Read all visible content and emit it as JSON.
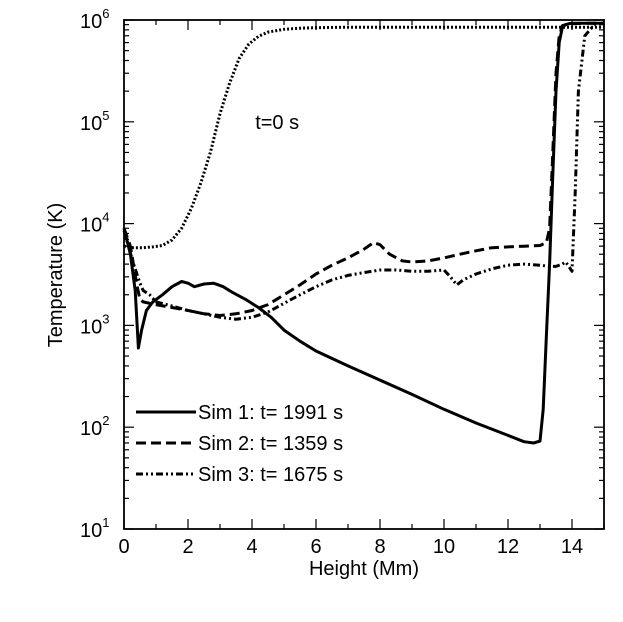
{
  "chart_data": {
    "type": "line",
    "title": "",
    "xlabel": "Height (Mm)",
    "ylabel": "Temperature (K)",
    "xlim": [
      0,
      15
    ],
    "ylim": [
      10,
      1000000
    ],
    "yscale": "log",
    "x_ticks": [
      0,
      2,
      4,
      6,
      8,
      10,
      12,
      14
    ],
    "x_tick_labels": [
      "0",
      "2",
      "4",
      "6",
      "8",
      "10",
      "12",
      "14"
    ],
    "y_ticks": [
      {
        "value": 10,
        "base": "10",
        "exp": "1"
      },
      {
        "value": 100,
        "base": "10",
        "exp": "2"
      },
      {
        "value": 1000,
        "base": "10",
        "exp": "3"
      },
      {
        "value": 10000,
        "base": "10",
        "exp": "4"
      },
      {
        "value": 100000,
        "base": "10",
        "exp": "5"
      },
      {
        "value": 1000000,
        "base": "10",
        "exp": "6"
      }
    ],
    "legend_position": "bottom-left",
    "annotation": {
      "text": "t=0 s",
      "x": 4.1,
      "y": 100000
    },
    "series": [
      {
        "name": "t=0 s",
        "style": "dotted",
        "in_legend": false,
        "x": [
          0,
          0.3,
          0.6,
          0.9,
          1.2,
          1.5,
          1.8,
          2.1,
          2.4,
          2.7,
          3.0,
          3.3,
          3.6,
          3.9,
          4.2,
          4.5,
          5.0,
          5.5,
          6.0,
          7.0,
          8.0,
          10.0,
          12.0,
          14.0,
          15.0
        ],
        "y": [
          6000,
          5800,
          5800,
          5900,
          6100,
          6900,
          9000,
          14000,
          25000,
          50000,
          120000,
          240000,
          420000,
          580000,
          690000,
          760000,
          810000,
          830000,
          840000,
          850000,
          850000,
          850000,
          850000,
          850000,
          850000
        ]
      },
      {
        "name": "Sim 1: t= 1991 s",
        "style": "solid",
        "in_legend": true,
        "x": [
          0,
          0.2,
          0.35,
          0.45,
          0.55,
          0.7,
          0.9,
          1.2,
          1.5,
          1.8,
          2.0,
          2.2,
          2.5,
          2.8,
          3.1,
          3.4,
          3.8,
          4.2,
          4.6,
          5.0,
          5.5,
          6.0,
          7.0,
          8.0,
          9.0,
          10.0,
          11.0,
          12.0,
          12.5,
          12.8,
          13.0,
          13.1,
          13.2,
          13.3,
          13.4,
          13.5,
          13.6,
          13.7,
          13.8,
          13.9,
          14.0,
          14.5,
          15.0
        ],
        "y": [
          9000,
          5000,
          2200,
          600,
          900,
          1400,
          1700,
          2000,
          2400,
          2700,
          2600,
          2400,
          2550,
          2600,
          2400,
          2100,
          1800,
          1500,
          1200,
          900,
          700,
          560,
          400,
          290,
          210,
          150,
          110,
          83,
          72,
          70,
          73,
          150,
          800,
          4000,
          30000,
          200000,
          600000,
          850000,
          900000,
          920000,
          930000,
          930000,
          930000
        ]
      },
      {
        "name": "Sim 2: t= 1359 s",
        "style": "dashed",
        "in_legend": true,
        "x": [
          0,
          0.2,
          0.4,
          0.5,
          0.6,
          0.8,
          1.0,
          1.5,
          2.0,
          2.5,
          3.0,
          3.5,
          4.0,
          4.5,
          5.0,
          5.5,
          6.0,
          6.5,
          7.0,
          7.5,
          7.8,
          8.0,
          8.3,
          8.7,
          9.0,
          9.5,
          10.0,
          10.5,
          11.0,
          11.5,
          12.0,
          12.5,
          13.0,
          13.2,
          13.3,
          13.4,
          13.5,
          13.6,
          13.7,
          13.8,
          14.0,
          14.5,
          15.0
        ],
        "y": [
          9000,
          6000,
          2500,
          1800,
          1700,
          1650,
          1600,
          1500,
          1400,
          1300,
          1250,
          1300,
          1400,
          1600,
          2000,
          2500,
          3200,
          3900,
          4600,
          5600,
          6500,
          6200,
          5000,
          4300,
          4200,
          4300,
          4600,
          5000,
          5400,
          5800,
          5900,
          6000,
          6100,
          6500,
          9000,
          50000,
          300000,
          700000,
          880000,
          900000,
          920000,
          930000,
          930000
        ]
      },
      {
        "name": "Sim 3: t= 1675 s",
        "style": "dashdotdot",
        "in_legend": true,
        "x": [
          0,
          0.3,
          0.5,
          0.6,
          0.8,
          1.0,
          1.5,
          2.0,
          2.5,
          3.0,
          3.5,
          4.0,
          4.5,
          5.0,
          5.5,
          6.0,
          6.5,
          7.0,
          7.5,
          8.0,
          8.5,
          9.0,
          9.5,
          10.0,
          10.2,
          10.4,
          10.6,
          11.0,
          11.5,
          12.0,
          12.5,
          13.0,
          13.3,
          13.5,
          13.7,
          13.8,
          13.9,
          14.0,
          14.1,
          14.2,
          14.4,
          14.7,
          15.0
        ],
        "y": [
          8500,
          4000,
          2600,
          2200,
          2000,
          1700,
          1550,
          1400,
          1300,
          1200,
          1150,
          1200,
          1350,
          1650,
          2000,
          2400,
          2800,
          3100,
          3300,
          3500,
          3500,
          3400,
          3400,
          3500,
          3000,
          2500,
          2800,
          3200,
          3600,
          3900,
          4000,
          3900,
          3800,
          3800,
          4000,
          4200,
          3800,
          3400,
          20000,
          200000,
          700000,
          900000,
          930000
        ]
      }
    ]
  }
}
